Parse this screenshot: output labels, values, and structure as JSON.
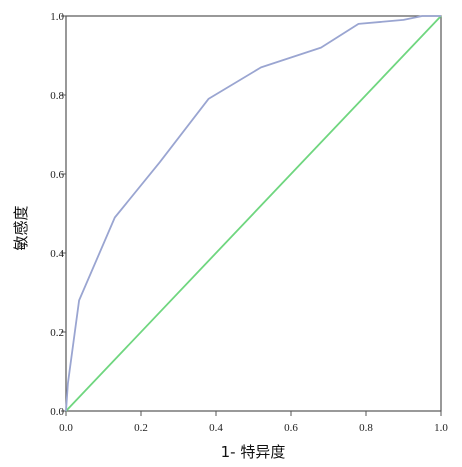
{
  "chart_data": {
    "type": "line",
    "title": "",
    "xlabel": "1- 特异度",
    "ylabel": "敏感度",
    "xlim": [
      0,
      1
    ],
    "ylim": [
      0,
      1
    ],
    "x_ticks": [
      "0.0",
      "0.2",
      "0.4",
      "0.6",
      "0.8",
      "1.0"
    ],
    "y_ticks": [
      "0.0",
      "0.2",
      "0.4",
      "0.6",
      "0.8",
      "1.0"
    ],
    "grid": false,
    "legend": "none",
    "series": [
      {
        "color": "#9aa5d1",
        "x": [
          0.0,
          0.005,
          0.035,
          0.13,
          0.25,
          0.38,
          0.52,
          0.68,
          0.78,
          0.9,
          0.95,
          1.0
        ],
        "y": [
          0.0,
          0.07,
          0.28,
          0.49,
          0.63,
          0.79,
          0.87,
          0.92,
          0.98,
          0.99,
          1.0,
          1.0
        ]
      },
      {
        "color": "#6fd67f",
        "x": [
          0.0,
          1.0
        ],
        "y": [
          0.0,
          1.0
        ]
      }
    ]
  }
}
